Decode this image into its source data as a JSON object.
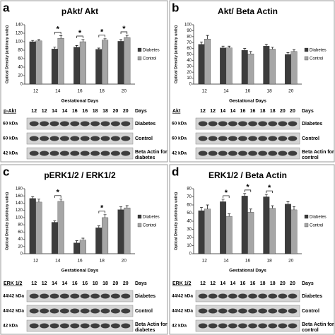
{
  "chart_data": [
    {
      "type": "bar",
      "panel": "a",
      "title": "pAkt/ Akt",
      "y_label": "Optical Density (arbitrary units)",
      "x_label": "Gestational Days",
      "categories": [
        12,
        14,
        16,
        18,
        20
      ],
      "ylim": [
        0,
        140
      ],
      "yticks": [
        0,
        20,
        40,
        60,
        80,
        100,
        120,
        140
      ],
      "series": [
        {
          "name": "Diabetes",
          "color": "#3c3c3c",
          "values": [
            100,
            83,
            87,
            82,
            101
          ],
          "errors": [
            3,
            4,
            4,
            3,
            4
          ]
        },
        {
          "name": "Control",
          "color": "#a6a6a6",
          "values": [
            102,
            108,
            100,
            104,
            110
          ],
          "errors": [
            3,
            6,
            5,
            3,
            5
          ]
        }
      ],
      "annotations": [
        {
          "text": "*",
          "x": 14
        },
        {
          "text": "*",
          "x": 16
        },
        {
          "text": "*",
          "x": 18
        },
        {
          "text": "*",
          "x": 20
        }
      ]
    },
    {
      "type": "bar",
      "panel": "b",
      "title": "Akt/ Beta Actin",
      "y_label": "Optical Density (arbitrary units)",
      "x_label": "Gestational Days",
      "categories": [
        12,
        14,
        16,
        18,
        20
      ],
      "ylim": [
        0,
        100
      ],
      "yticks": [
        0,
        10,
        20,
        30,
        40,
        50,
        60,
        70,
        80,
        90,
        100
      ],
      "series": [
        {
          "name": "Diabetes",
          "color": "#3c3c3c",
          "values": [
            67,
            61,
            57,
            64,
            50
          ],
          "errors": [
            4,
            3,
            3,
            3,
            3
          ]
        },
        {
          "name": "Control",
          "color": "#a6a6a6",
          "values": [
            76,
            61,
            51,
            59,
            55
          ],
          "errors": [
            6,
            3,
            4,
            3,
            3
          ]
        }
      ],
      "annotations": []
    },
    {
      "type": "bar",
      "panel": "c",
      "title": "pERK1/2 / ERK1/2",
      "y_label": "Optical Density (arbitrary units)",
      "x_label": "Gestational Days",
      "categories": [
        12,
        14,
        16,
        18,
        20
      ],
      "ylim": [
        0,
        180
      ],
      "yticks": [
        0,
        20,
        40,
        60,
        80,
        100,
        120,
        140,
        160,
        180
      ],
      "series": [
        {
          "name": "Diabetes",
          "color": "#3c3c3c",
          "values": [
            153,
            87,
            30,
            72,
            122
          ],
          "errors": [
            5,
            4,
            6,
            5,
            8
          ]
        },
        {
          "name": "Control",
          "color": "#a6a6a6",
          "values": [
            143,
            145,
            38,
            100,
            127
          ],
          "errors": [
            8,
            6,
            5,
            8,
            6
          ]
        }
      ],
      "annotations": [
        {
          "text": "*",
          "x": 14
        },
        {
          "text": "*",
          "x": 18
        }
      ]
    },
    {
      "type": "bar",
      "panel": "d",
      "title": "ERK1/2 / Beta Actin",
      "y_label": "Optical Density (arbitrary units)",
      "x_label": "Gestational Days",
      "categories": [
        12,
        14,
        16,
        18,
        20
      ],
      "ylim": [
        0,
        80
      ],
      "yticks": [
        0,
        10,
        20,
        30,
        40,
        50,
        60,
        70,
        80
      ],
      "series": [
        {
          "name": "Diabetes",
          "color": "#3c3c3c",
          "values": [
            53,
            64,
            71,
            70,
            61
          ],
          "errors": [
            4,
            3,
            3,
            3,
            3
          ]
        },
        {
          "name": "Control",
          "color": "#a6a6a6",
          "values": [
            55,
            46,
            51,
            56,
            54
          ],
          "errors": [
            5,
            3,
            4,
            3,
            4
          ]
        }
      ],
      "annotations": [
        {
          "text": "*",
          "x": 14
        },
        {
          "text": "*",
          "x": 16
        },
        {
          "text": "*",
          "x": 18
        }
      ]
    }
  ],
  "blots": [
    {
      "label": "p-Akt",
      "days": [
        12,
        12,
        14,
        14,
        16,
        16,
        18,
        18,
        20,
        20
      ],
      "days_label": "Days",
      "rows": [
        {
          "left": "60 kDa",
          "right": "Diabetes"
        },
        {
          "left": "60 kDa",
          "right": "Control"
        },
        {
          "left": "42 kDa",
          "right": "Beta Actin for diabetes"
        }
      ]
    },
    {
      "label": "Akt",
      "days": [
        12,
        12,
        14,
        14,
        16,
        16,
        18,
        18,
        20,
        20
      ],
      "days_label": "Days",
      "rows": [
        {
          "left": "60 kDa",
          "right": "Diabetes"
        },
        {
          "left": "60 kDa",
          "right": "Control"
        },
        {
          "left": "42 kDa",
          "right": "Beta Actin for control"
        }
      ]
    },
    {
      "label": "ERK 1/2",
      "days": [
        12,
        12,
        14,
        14,
        16,
        16,
        18,
        18,
        20,
        20
      ],
      "days_label": "Days",
      "rows": [
        {
          "left": "44/42 kDa",
          "right": "Diabetes"
        },
        {
          "left": "44/42 kDa",
          "right": "Control"
        },
        {
          "left": "42 kDa",
          "right": "Beta Actin for diabetes"
        }
      ]
    },
    {
      "label": "ERK 1/2",
      "days": [
        12,
        12,
        14,
        14,
        16,
        16,
        18,
        18,
        20,
        20
      ],
      "days_label": "Days",
      "rows": [
        {
          "left": "44/42 kDa",
          "right": "Diabetes"
        },
        {
          "left": "44/42 kDa",
          "right": "Control"
        },
        {
          "left": "42 kDa",
          "right": "Beta Actin for control"
        }
      ]
    }
  ]
}
